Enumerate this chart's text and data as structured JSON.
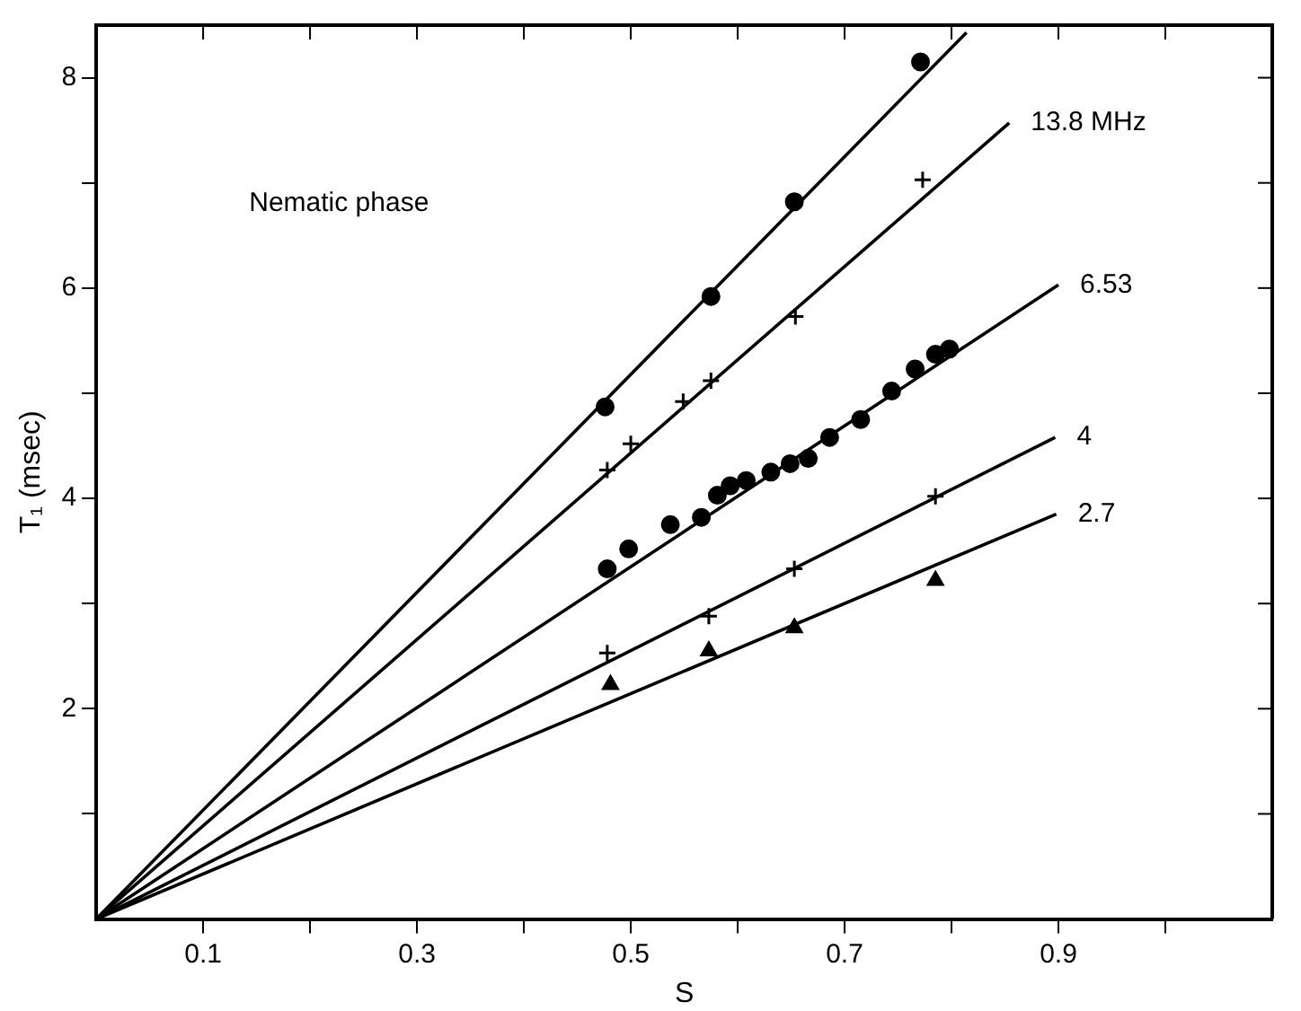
{
  "chart_data": {
    "type": "scatter",
    "xlabel": "S",
    "ylabel": "T₁ (msec)",
    "annotations": [
      "Nematic phase"
    ],
    "xlim": [
      0,
      1.1
    ],
    "ylim": [
      0,
      8.5
    ],
    "xticks": [
      0.1,
      {
        "value": 0.2,
        "label": null
      },
      0.3,
      {
        "value": 0.4,
        "label": null
      },
      0.5,
      {
        "value": 0.6,
        "label": null
      },
      0.7,
      {
        "value": 0.8,
        "label": null
      },
      0.9,
      {
        "value": 1.0,
        "label": null
      }
    ],
    "yticks": [
      {
        "value": 1,
        "label": null
      },
      2,
      {
        "value": 3,
        "label": null
      },
      4,
      {
        "value": 5,
        "label": null
      },
      6,
      {
        "value": 7,
        "label": null
      },
      8
    ],
    "grid": false,
    "legend": false,
    "series": [
      {
        "marker": "circle",
        "color": "#000000",
        "x": [
          0.476,
          0.575,
          0.653,
          0.771
        ],
        "values": [
          4.87,
          5.92,
          6.82,
          8.15
        ]
      },
      {
        "marker": "cross",
        "color": "#000000",
        "x": [
          0.478,
          0.5,
          0.549,
          0.575,
          0.654,
          0.773
        ],
        "values": [
          4.27,
          4.52,
          4.92,
          5.12,
          5.73,
          7.03
        ]
      },
      {
        "marker": "circle",
        "color": "#000000",
        "x": [
          0.478,
          0.498,
          0.537,
          0.566,
          0.581,
          0.593,
          0.608,
          0.631,
          0.649,
          0.666,
          0.686,
          0.715,
          0.744,
          0.766,
          0.785,
          0.798
        ],
        "values": [
          3.33,
          3.52,
          3.75,
          3.82,
          4.03,
          4.12,
          4.17,
          4.25,
          4.33,
          4.38,
          4.58,
          4.75,
          5.02,
          5.23,
          5.37,
          5.42
        ]
      },
      {
        "marker": "cross",
        "color": "#000000",
        "x": [
          0.478,
          0.573,
          0.653,
          0.785
        ],
        "values": [
          2.53,
          2.88,
          3.33,
          4.02
        ]
      },
      {
        "marker": "triangle",
        "color": "#000000",
        "x": [
          0.481,
          0.573,
          0.653,
          0.785
        ],
        "values": [
          2.23,
          2.55,
          2.77,
          3.22
        ]
      },
      {
        "type": "line",
        "color": "#000000",
        "x": [
          0,
          0.814
        ],
        "values": [
          0,
          8.43
        ]
      },
      {
        "type": "line",
        "name": "13.8 MHz",
        "color": "#000000",
        "x": [
          0,
          0.854
        ],
        "values": [
          0,
          7.57
        ]
      },
      {
        "type": "line",
        "name": "6.53",
        "color": "#000000",
        "x": [
          0,
          0.9
        ],
        "values": [
          0,
          6.03
        ]
      },
      {
        "type": "line",
        "name": "4",
        "color": "#000000",
        "x": [
          0,
          0.897
        ],
        "values": [
          0,
          4.58
        ]
      },
      {
        "type": "line",
        "name": "2.7",
        "color": "#000000",
        "x": [
          0,
          0.898
        ],
        "values": [
          0,
          3.85
        ]
      }
    ]
  }
}
